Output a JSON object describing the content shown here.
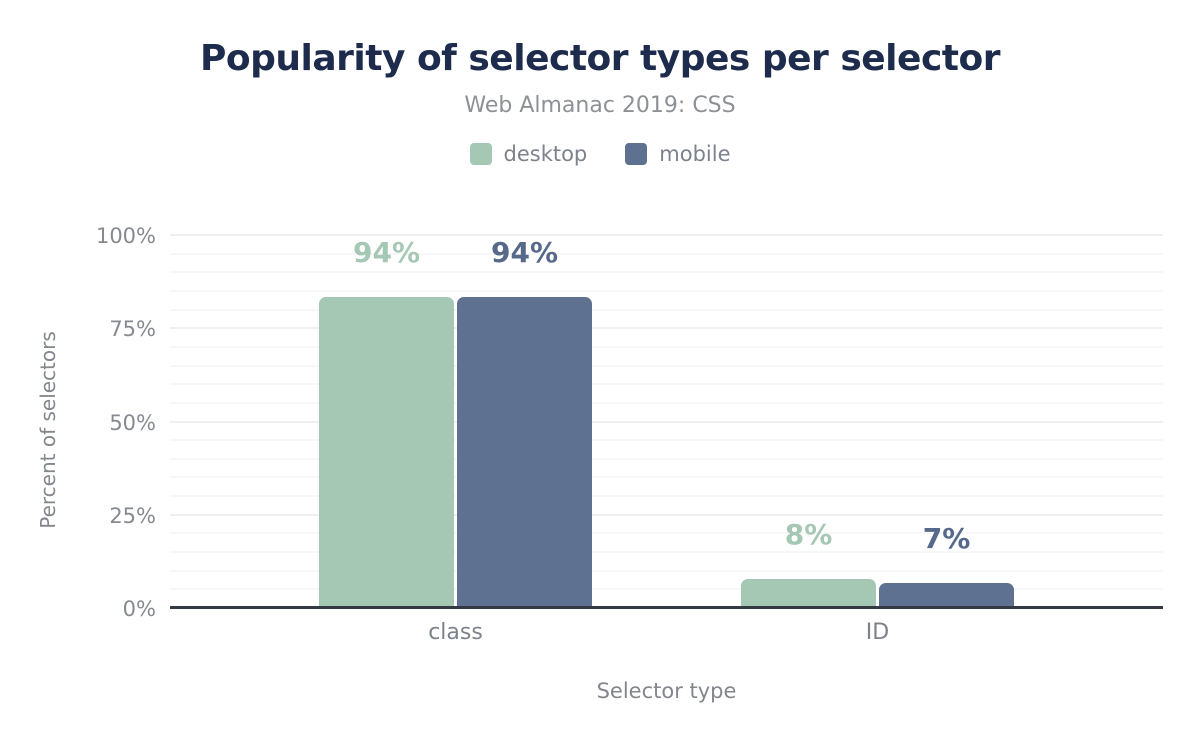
{
  "chart_data": {
    "type": "bar",
    "title": "Popularity of selector types per selector",
    "subtitle": "Web Almanac 2019: CSS",
    "categories": [
      "class",
      "ID"
    ],
    "series": [
      {
        "name": "desktop",
        "color": "#a5c8b5",
        "label_color": "#a5c8b5",
        "values": [
          94,
          8
        ],
        "labels": [
          "94%",
          "8%"
        ]
      },
      {
        "name": "mobile",
        "color": "#5e7190",
        "label_color": "#57698b",
        "values": [
          94,
          7
        ],
        "labels": [
          "94%",
          "7%"
        ]
      }
    ],
    "xlabel": "Selector type",
    "ylabel": "Percent of selectors",
    "ylim": [
      0,
      100
    ],
    "yticks": [
      "0%",
      "25%",
      "50%",
      "75%",
      "100%"
    ],
    "grid": "horizontal minor lines every 5%, major every 25%",
    "legend_position": "top"
  }
}
